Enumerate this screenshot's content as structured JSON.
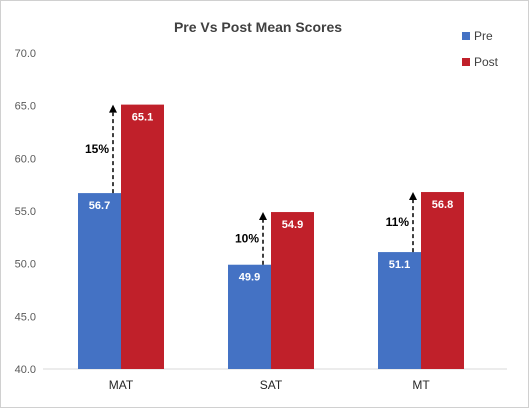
{
  "chart_data": {
    "type": "bar",
    "title": "Pre Vs Post Mean Scores",
    "categories": [
      "MAT",
      "SAT",
      "MT"
    ],
    "series": [
      {
        "name": "Pre",
        "values": [
          56.7,
          49.9,
          51.1
        ],
        "color": "#4472C4"
      },
      {
        "name": "Post",
        "values": [
          65.1,
          54.9,
          56.8
        ],
        "color": "#C0202A"
      }
    ],
    "data_labels": {
      "Pre": [
        "56.7",
        "49.9",
        "51.1"
      ],
      "Post": [
        "65.1",
        "54.9",
        "56.8"
      ]
    },
    "annotations": [
      "15%",
      "10%",
      "11%"
    ],
    "ylim": [
      40.0,
      70.0
    ],
    "yticks": [
      "70.0",
      "65.0",
      "60.0",
      "55.0",
      "50.0",
      "45.0",
      "40.0"
    ],
    "xlabel": "",
    "ylabel": "",
    "grid": false,
    "legend_position": "top-right"
  }
}
